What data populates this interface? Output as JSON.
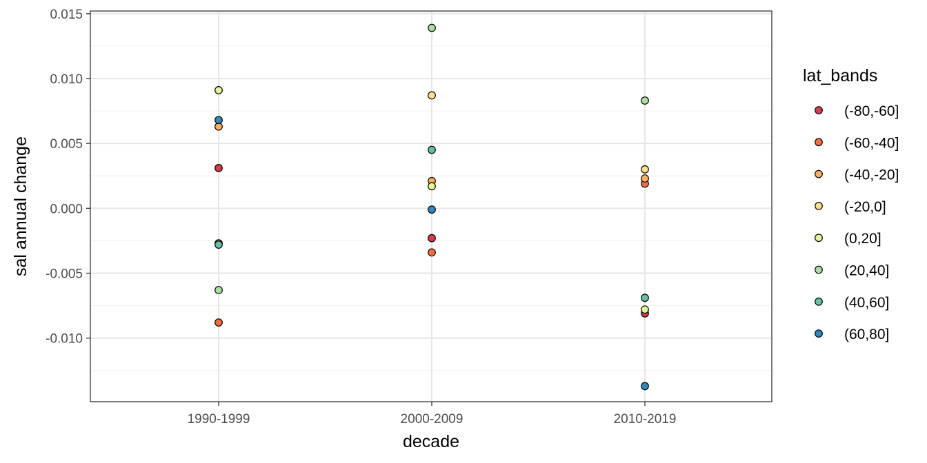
{
  "chart_data": {
    "type": "scatter",
    "title": "",
    "xlabel": "decade",
    "ylabel": "sal annual change",
    "categories": [
      "1990-1999",
      "2000-2009",
      "2010-2019"
    ],
    "ylim": [
      -0.0149,
      0.0152
    ],
    "yticks": [
      -0.01,
      -0.005,
      0.0,
      0.005,
      0.01,
      0.015
    ],
    "ytick_labels": [
      "-0.010",
      "-0.005",
      "0.000",
      "0.005",
      "0.010",
      "0.015"
    ],
    "grid": true,
    "legend": {
      "title": "lat_bands",
      "position": "right"
    },
    "series": [
      {
        "name": "(-80,-60]",
        "color": "#D53E4F",
        "values": [
          0.0031,
          -0.0023,
          -0.0081
        ]
      },
      {
        "name": "(-60,-40]",
        "color": "#F46D43",
        "values": [
          -0.0088,
          -0.0034,
          0.0019
        ]
      },
      {
        "name": "(-40,-20]",
        "color": "#FDAE61",
        "values": [
          0.0063,
          0.0021,
          0.0023
        ]
      },
      {
        "name": "(-20,0]",
        "color": "#FEE08B",
        "values": [
          -0.0027,
          0.0087,
          0.003
        ]
      },
      {
        "name": "(0,20]",
        "color": "#E6F598",
        "values": [
          0.0091,
          0.0017,
          -0.0078
        ]
      },
      {
        "name": "(20,40]",
        "color": "#ABDDA4",
        "values": [
          -0.0063,
          0.0139,
          0.0083
        ]
      },
      {
        "name": "(40,60]",
        "color": "#66C2A5",
        "values": [
          -0.0028,
          0.0045,
          -0.0069
        ]
      },
      {
        "name": "(60,80]",
        "color": "#3288BD",
        "values": [
          0.0068,
          -0.0001,
          -0.0137
        ]
      }
    ]
  }
}
